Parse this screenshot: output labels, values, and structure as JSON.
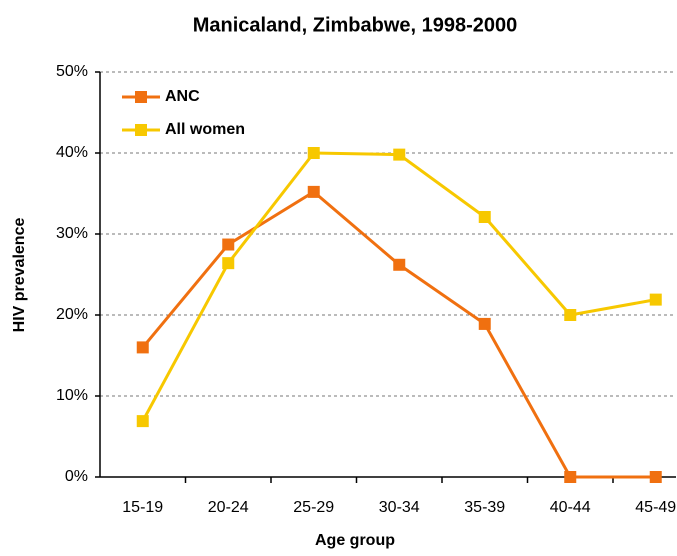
{
  "chart_data": {
    "type": "line",
    "title": "Manicaland, Zimbabwe, 1998-2000",
    "x_label": "Age group",
    "y_label": "HIV prevalence",
    "categories": [
      "15-19",
      "20-24",
      "25-29",
      "30-34",
      "35-39",
      "40-44",
      "45-49"
    ],
    "series": [
      {
        "name": "ANC",
        "color": "#f07010",
        "values": [
          16,
          28.7,
          35.2,
          26.2,
          18.9,
          0,
          0
        ]
      },
      {
        "name": "All women",
        "color": "#f7c800",
        "values": [
          6.9,
          26.4,
          40,
          39.8,
          32.1,
          20,
          21.9
        ]
      }
    ],
    "ylim": [
      0,
      50
    ],
    "yticks": [
      {
        "value": 0,
        "label": "0%"
      },
      {
        "value": 10,
        "label": "10%"
      },
      {
        "value": 20,
        "label": "20%"
      },
      {
        "value": 30,
        "label": "30%"
      },
      {
        "value": 40,
        "label": "40%"
      },
      {
        "value": 50,
        "label": "50%"
      }
    ],
    "grid": true,
    "legend": "top-left"
  }
}
